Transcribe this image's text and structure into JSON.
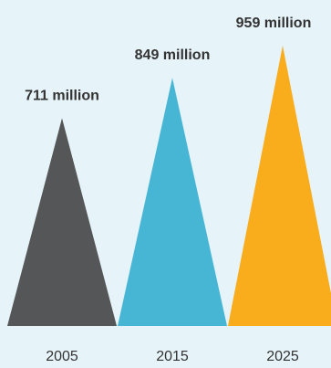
{
  "chart_data": {
    "type": "bar",
    "categories": [
      "2005",
      "2015",
      "2025"
    ],
    "values": [
      711,
      849,
      959
    ],
    "value_labels": [
      "711 million",
      "849 million",
      "959 million"
    ],
    "colors": [
      "#555658",
      "#47b6d5",
      "#f9ac1c"
    ],
    "title": "",
    "xlabel": "",
    "ylabel": "",
    "grid": false,
    "legend": "none"
  }
}
